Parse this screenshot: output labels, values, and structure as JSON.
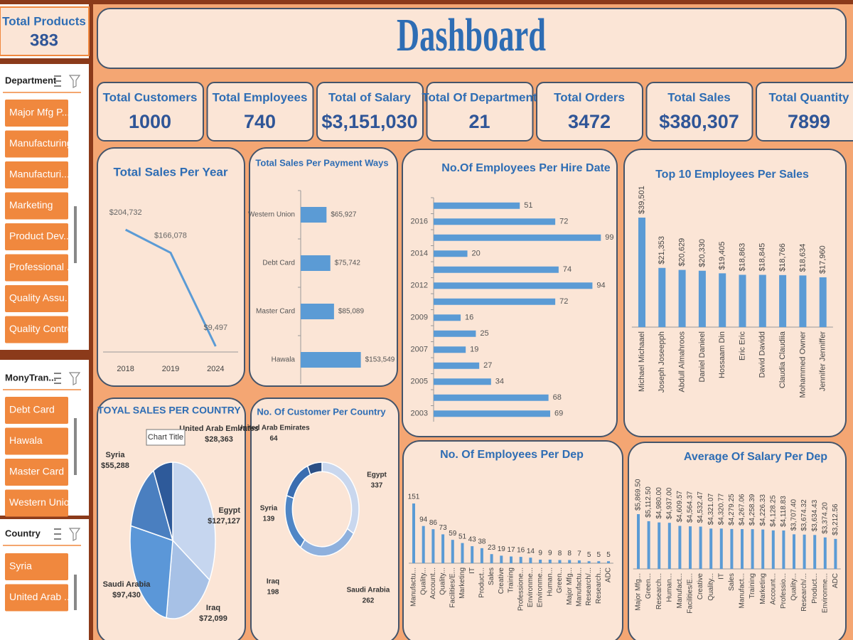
{
  "sidebar": {
    "total_products": {
      "label": "Total Products",
      "value": 383
    },
    "slicers": [
      {
        "title": "Department",
        "items": [
          "Major Mfg P...",
          "Manufacturing",
          "Manufacturi...",
          "Marketing",
          "Product Dev...",
          "Professional ...",
          "Quality Assu...",
          "Quality Control"
        ]
      },
      {
        "title": "MonyTran...",
        "items": [
          "Debt Card",
          "Hawala",
          "Master Card",
          "Western Union"
        ]
      },
      {
        "title": "Country",
        "items": [
          "Syria",
          "United Arab ..."
        ]
      }
    ]
  },
  "header": {
    "title": "Dashboard"
  },
  "kpis": [
    {
      "label": "Total Customers",
      "value": "1000"
    },
    {
      "label": "Total Employees",
      "value": "740"
    },
    {
      "label": "Total of Salary",
      "value": "$3,151,030"
    },
    {
      "label": "Total Of Department",
      "value": "21"
    },
    {
      "label": "Total Orders",
      "value": "3472"
    },
    {
      "label": "Total Sales",
      "value": "$380,307"
    },
    {
      "label": "Total Quantity",
      "value": "7899"
    }
  ],
  "chart_data": [
    {
      "type": "line",
      "title": "Total Sales Per Year",
      "color": "#5b9bd5",
      "categories": [
        "2018",
        "2019",
        "2024"
      ],
      "values": [
        204732,
        166078,
        9497
      ],
      "value_labels": [
        "$204,732",
        "$166,078",
        "$9,497"
      ]
    },
    {
      "type": "bar",
      "orientation": "horizontal",
      "title": "Total Sales Per Payment Ways",
      "color": "#5b9bd5",
      "categories": [
        "Western Union",
        "Debt Card",
        "Master Card",
        "Hawala"
      ],
      "values": [
        65927,
        75742,
        85089,
        153549
      ],
      "value_labels": [
        "$65,927",
        "$75,742",
        "$85,089",
        "$153,549"
      ]
    },
    {
      "type": "bar",
      "orientation": "horizontal",
      "title": "No.Of Employees Per Hire Date",
      "color": "#5b9bd5",
      "categories": [
        null,
        "2016",
        null,
        "2014",
        null,
        "2012",
        null,
        "2009",
        null,
        "2007",
        null,
        "2005",
        null,
        "2003"
      ],
      "values": [
        51,
        72,
        99,
        20,
        74,
        94,
        72,
        16,
        25,
        19,
        27,
        34,
        68,
        69
      ]
    },
    {
      "type": "bar",
      "orientation": "vertical",
      "title": "Top 10 Employees Per Sales",
      "color": "#5b9bd5",
      "categories": [
        "Michael Michaael",
        "Joseph Joseepph",
        "Abdull Almahroos",
        "Daniel Danieel",
        "Hossaam Din",
        "Eric Eric",
        "David Davidd",
        "Claudia Claudiia",
        "Mohammed Owner",
        "Jennifer Jenniffer"
      ],
      "values": [
        39501,
        21353,
        20629,
        20330,
        19405,
        18863,
        18845,
        18766,
        18634,
        17960
      ],
      "value_labels": [
        "$39,501",
        "$21,353",
        "$20,629",
        "$20,330",
        "$19,405",
        "$18,863",
        "$18,845",
        "$18,766",
        "$18,634",
        "$17,960"
      ]
    },
    {
      "type": "pie",
      "title": "TOYAL SALES PER COUNTRY",
      "tooltip": "Chart Title",
      "categories": [
        "Egypt",
        "Iraq",
        "Saudi Arabia",
        "Syria",
        "United Arab Emirates"
      ],
      "values": [
        127127,
        72099,
        97430,
        55288,
        28363
      ],
      "value_labels": [
        "$127,127",
        "$72,099",
        "$97,430",
        "$55,288",
        "$28,363"
      ],
      "colors": [
        "#c6d6ef",
        "#a7c1e6",
        "#5b97d8",
        "#4a7fc0",
        "#2e5a9a"
      ]
    },
    {
      "type": "donut",
      "title": "No. Of Customer Per Country",
      "categories": [
        "Egypt",
        "Saudi Arabia",
        "Iraq",
        "Syria",
        "United Arab Emirates"
      ],
      "values": [
        337,
        262,
        198,
        139,
        64
      ],
      "colors": [
        "#c9d7ee",
        "#8eb0dd",
        "#4f86c6",
        "#3a6db0",
        "#2b4f85"
      ]
    },
    {
      "type": "bar",
      "orientation": "vertical",
      "title": "No. Of Employees Per Dep",
      "color": "#5b9bd5",
      "categories": [
        "Manufactu...",
        "Quality...",
        "Account...",
        "Quality...",
        "Facilities/E...",
        "Marketing",
        "IT",
        "Product...",
        "Sales",
        "Creative",
        "Training",
        "Professione...",
        "Environme...",
        "Environme...",
        "Human...",
        "Green...",
        "Major Mfg...",
        "Manufactu...",
        "Research/...",
        "Research...",
        "ADC"
      ],
      "values": [
        151,
        94,
        86,
        73,
        59,
        51,
        43,
        38,
        23,
        19,
        17,
        16,
        14,
        9,
        9,
        8,
        8,
        7,
        5,
        5,
        5
      ]
    },
    {
      "type": "bar",
      "orientation": "vertical",
      "title": "Average Of Salary Per Dep",
      "color": "#5b9bd5",
      "categories": [
        "Major Mfg...",
        "Green...",
        "Research...",
        "Human...",
        "Manufact...",
        "Facilities/E...",
        "Creative",
        "Quality...",
        "IT",
        "Sales",
        "Manufact...",
        "Training",
        "Marketing",
        "Account...",
        "Professio...",
        "Quality...",
        "Research/...",
        "Product...",
        "Environme...",
        "ADC"
      ],
      "values": [
        5869.5,
        5112.5,
        4980,
        4937,
        4609.57,
        4564.37,
        4532.47,
        4321.07,
        4320.77,
        4279.25,
        4267.06,
        4258.39,
        4226.33,
        4128.25,
        4118.83,
        3707.4,
        3674.32,
        3634.43,
        3374.2,
        3212.56
      ],
      "value_labels": [
        "$5,869.50",
        "$5,112.50",
        "$4,980.00",
        "$4,937.00",
        "$4,609.57",
        "$4,564.37",
        "$4,532.47",
        "$4,321.07",
        "$4,320.77",
        "$4,279.25",
        "$4,267.06",
        "$4,258.39",
        "$4,226.33",
        "$4,128.25",
        "$4,118.83",
        "$3,707.40",
        "$3,674.32",
        "$3,634.43",
        "$3,374.20",
        "$3,212.56"
      ]
    }
  ]
}
